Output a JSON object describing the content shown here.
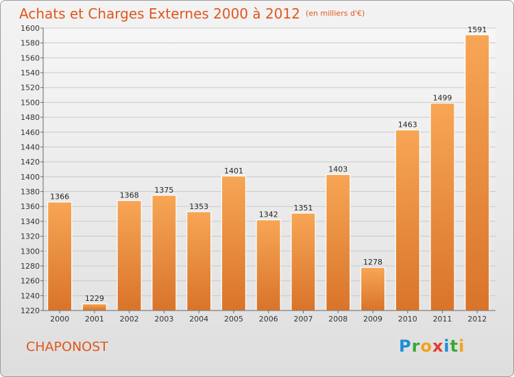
{
  "header": {
    "title": "Achats et Charges Externes 2000 à 2012",
    "unit": "(en milliers d'€)"
  },
  "footer": {
    "place": "CHAPONOST",
    "logo_letters": [
      "P",
      "r",
      "o",
      "x",
      "i",
      "t",
      "i"
    ]
  },
  "colors": {
    "title": "#e0561c",
    "bar_top": "#f7a655",
    "bar_bottom": "#d9742a"
  },
  "chart_data": {
    "type": "bar",
    "title": "Achats et Charges Externes 2000 à 2012",
    "subtitle": "(en milliers d'€)",
    "categories": [
      "2000",
      "2001",
      "2002",
      "2003",
      "2004",
      "2005",
      "2006",
      "2007",
      "2008",
      "2009",
      "2010",
      "2011",
      "2012"
    ],
    "values": [
      1366,
      1229,
      1368,
      1375,
      1353,
      1401,
      1342,
      1351,
      1403,
      1278,
      1463,
      1499,
      1591
    ],
    "ylim": [
      1220,
      1600
    ],
    "yticks": [
      1220,
      1240,
      1260,
      1280,
      1300,
      1320,
      1340,
      1360,
      1380,
      1400,
      1420,
      1440,
      1460,
      1480,
      1500,
      1520,
      1540,
      1560,
      1580,
      1600
    ],
    "grid": true,
    "xlabel": "",
    "ylabel": ""
  }
}
